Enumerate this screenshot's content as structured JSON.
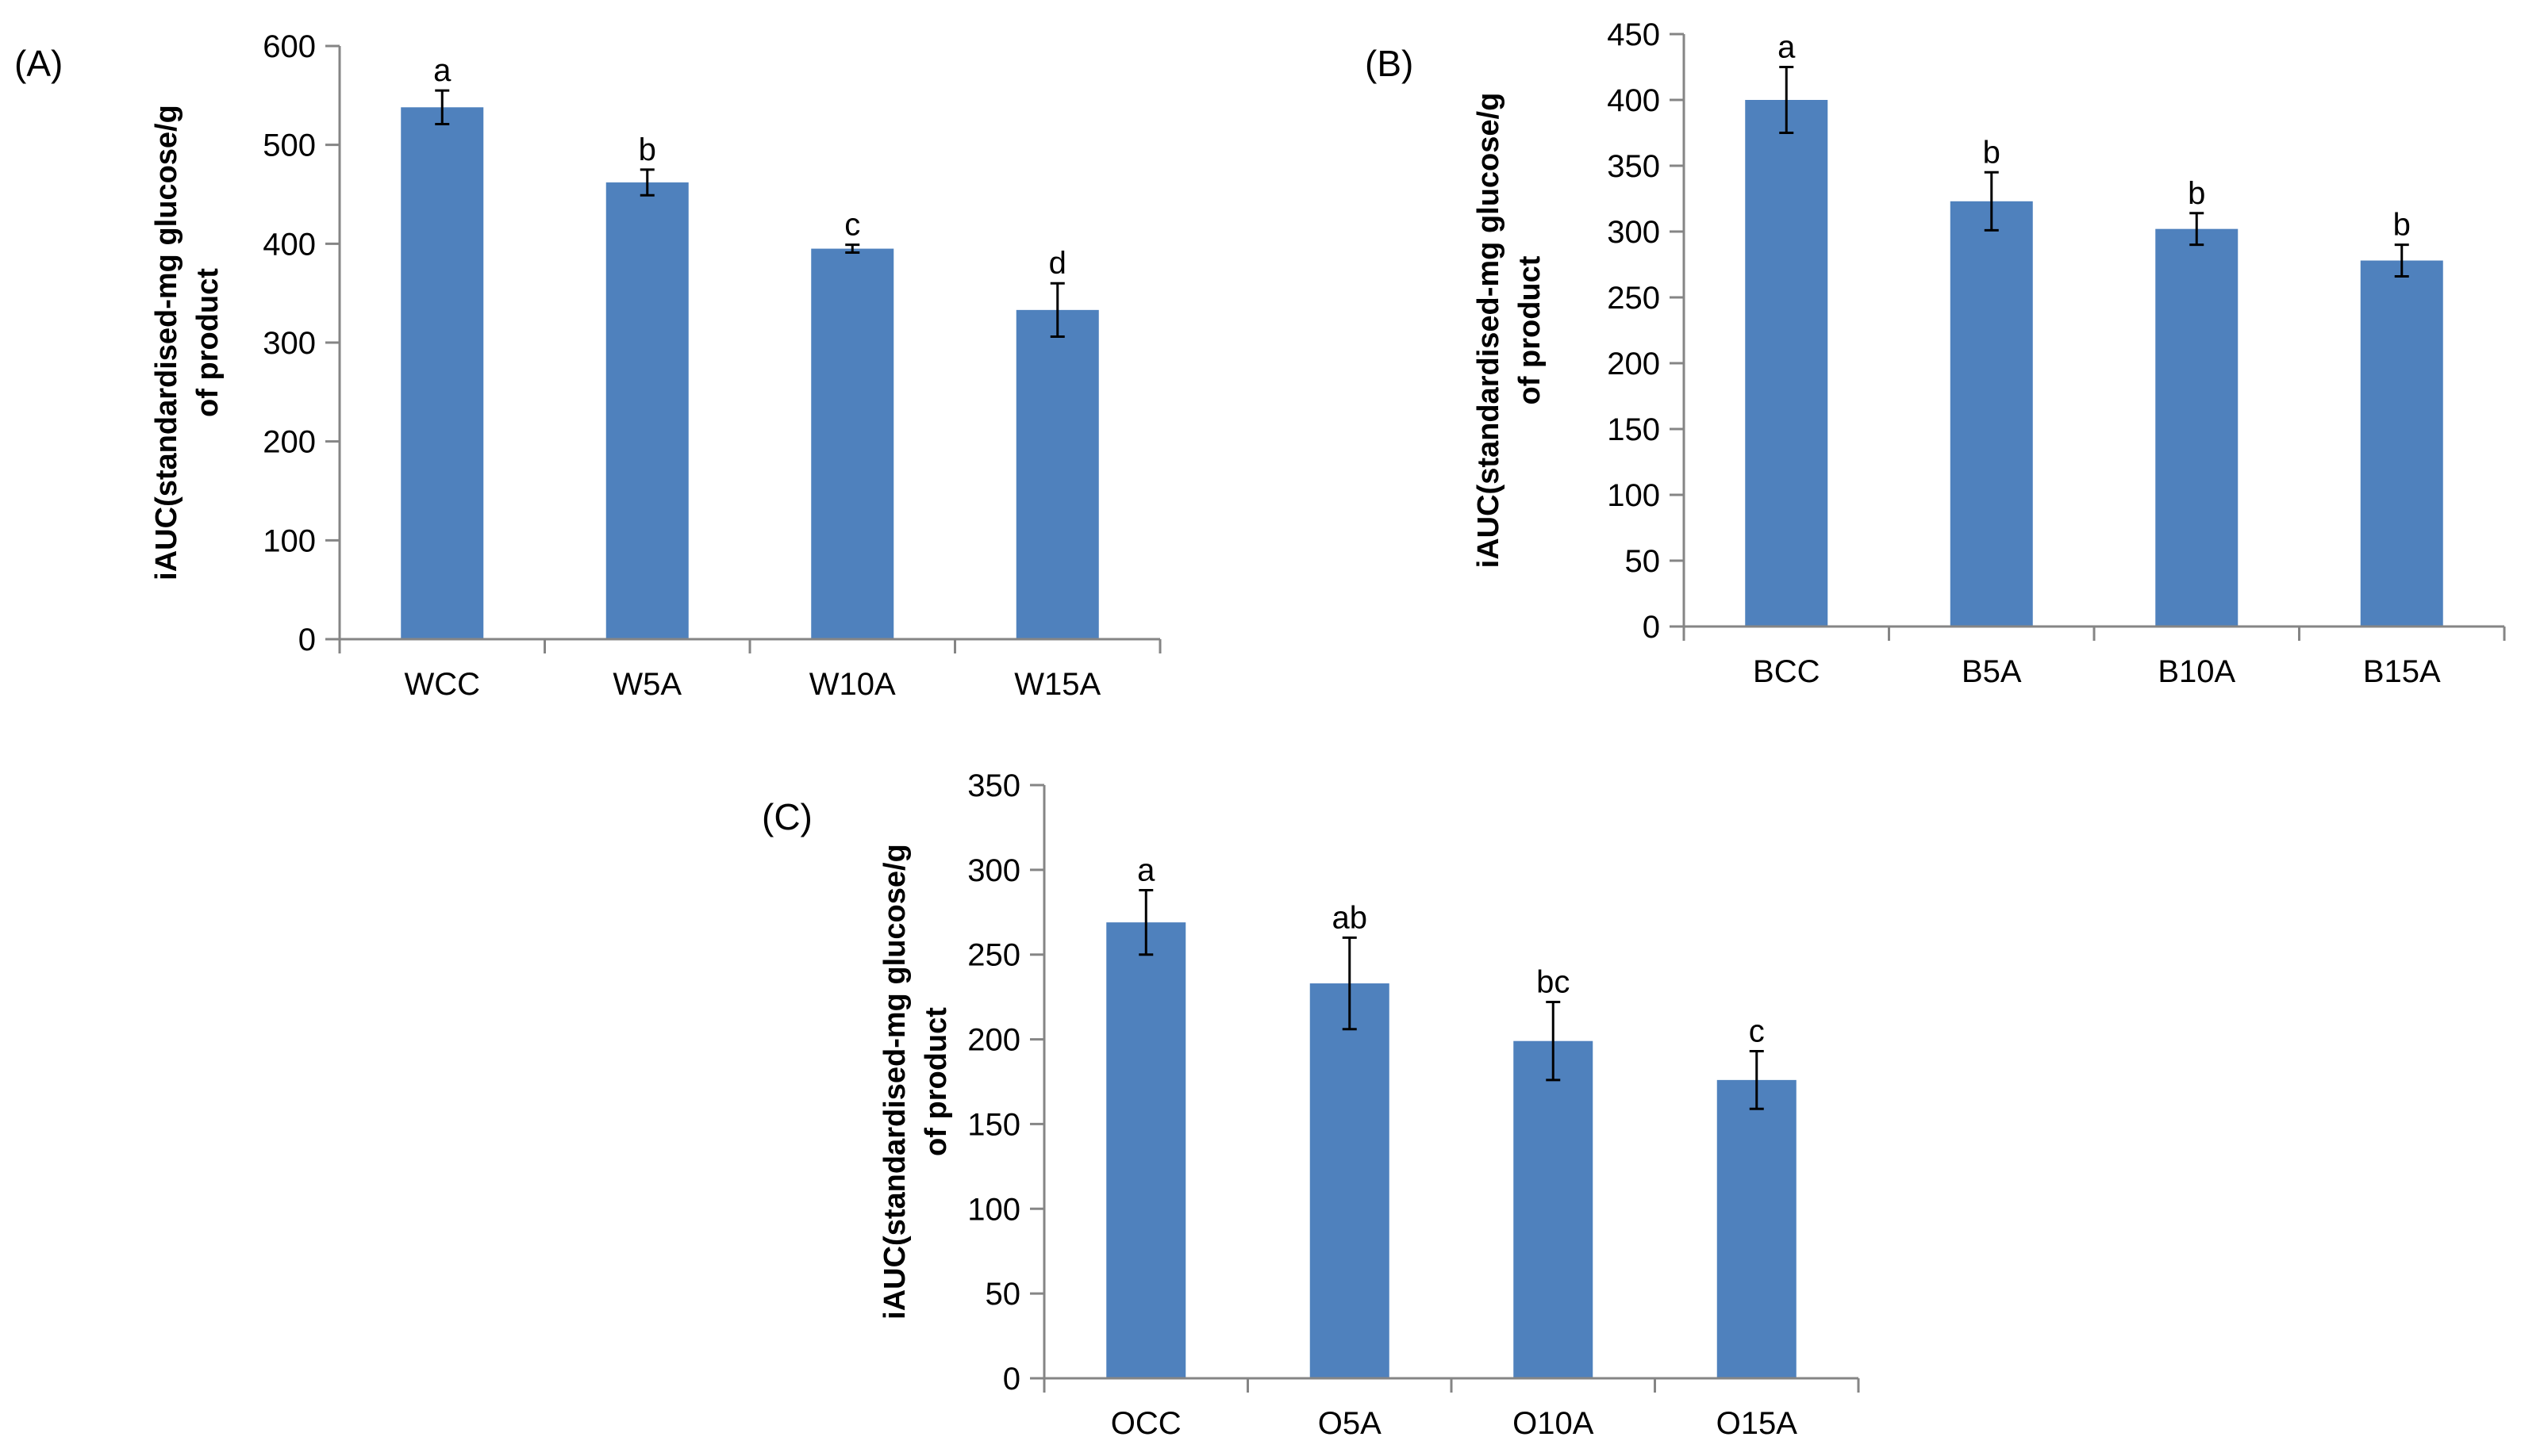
{
  "chart_data": [
    {
      "type": "bar",
      "panel_label": "(A)",
      "title": "",
      "xlabel": "",
      "ylabel_lines": [
        "iAUC(standardised-mg glucose/g",
        "of product"
      ],
      "categories": [
        "WCC",
        "W5A",
        "W10A",
        "W15A"
      ],
      "values": [
        538,
        462,
        395,
        333
      ],
      "errors": [
        17,
        13,
        4,
        27
      ],
      "significance": [
        "a",
        "b",
        "c",
        "d"
      ],
      "ylim": [
        0,
        600
      ],
      "yticks": [
        0,
        100,
        200,
        300,
        400,
        500,
        600
      ],
      "bar_color": "#4F81BD",
      "grid": false
    },
    {
      "type": "bar",
      "panel_label": "(B)",
      "title": "",
      "xlabel": "",
      "ylabel_lines": [
        "iAUC(standardised-mg glucose/g",
        "of product"
      ],
      "categories": [
        "BCC",
        "B5A",
        "B10A",
        "B15A"
      ],
      "values": [
        400,
        323,
        302,
        278
      ],
      "errors": [
        25,
        22,
        12,
        12
      ],
      "significance": [
        "a",
        "b",
        "b",
        "b"
      ],
      "ylim": [
        0,
        450
      ],
      "yticks": [
        0,
        50,
        100,
        150,
        200,
        250,
        300,
        350,
        400,
        450
      ],
      "bar_color": "#4F81BD",
      "grid": false
    },
    {
      "type": "bar",
      "panel_label": "(C)",
      "title": "",
      "xlabel": "",
      "ylabel_lines": [
        "iAUC(standardised-mg glucose/g",
        "of product"
      ],
      "categories": [
        "OCC",
        "O5A",
        "O10A",
        "O15A"
      ],
      "values": [
        269,
        233,
        199,
        176
      ],
      "errors": [
        19,
        27,
        23,
        17
      ],
      "significance": [
        "a",
        "ab",
        "bc",
        "c"
      ],
      "ylim": [
        0,
        350
      ],
      "yticks": [
        0,
        50,
        100,
        150,
        200,
        250,
        300,
        350
      ],
      "bar_color": "#4F81BD",
      "grid": false
    }
  ]
}
